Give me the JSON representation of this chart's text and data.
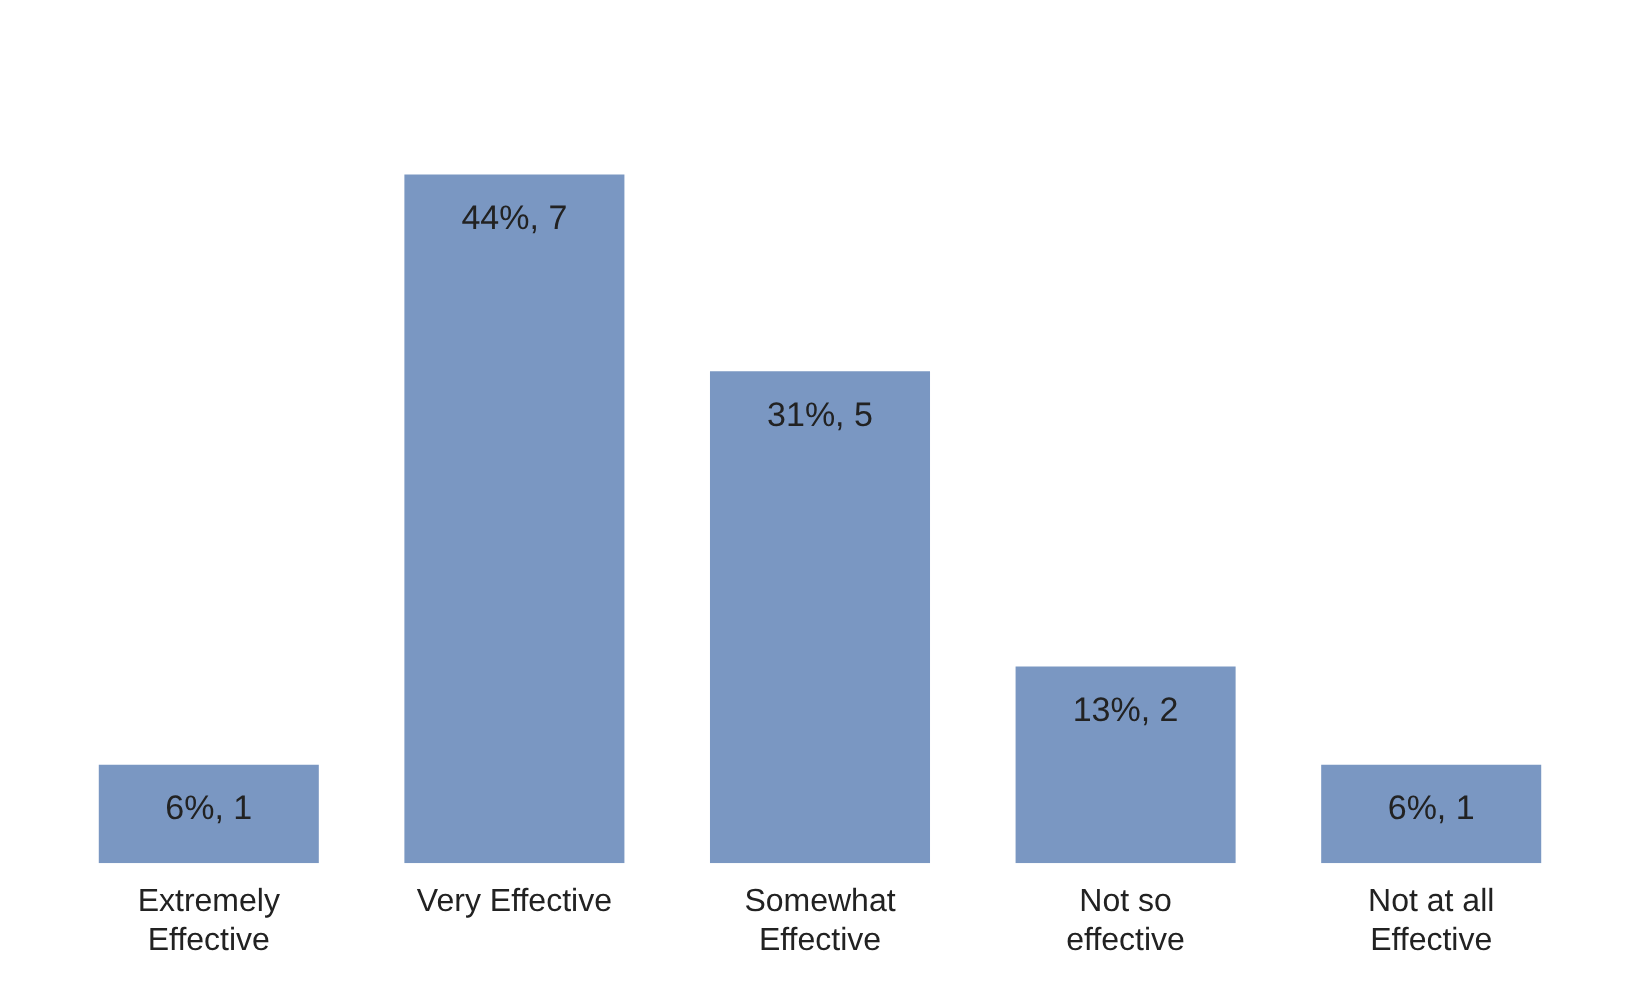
{
  "chart_data": {
    "type": "bar",
    "categories": [
      "Extremely Effective",
      "Very Effective",
      "Somewhat Effective",
      "Not so effective",
      "Not at all Effective"
    ],
    "values": [
      1,
      7,
      5,
      2,
      1
    ],
    "value_labels": [
      "6%, 1",
      "44%, 7",
      "31%, 5",
      "13%, 2",
      "6%, 1"
    ],
    "color": "#7a97c2",
    "grid": false,
    "legend": false
  }
}
